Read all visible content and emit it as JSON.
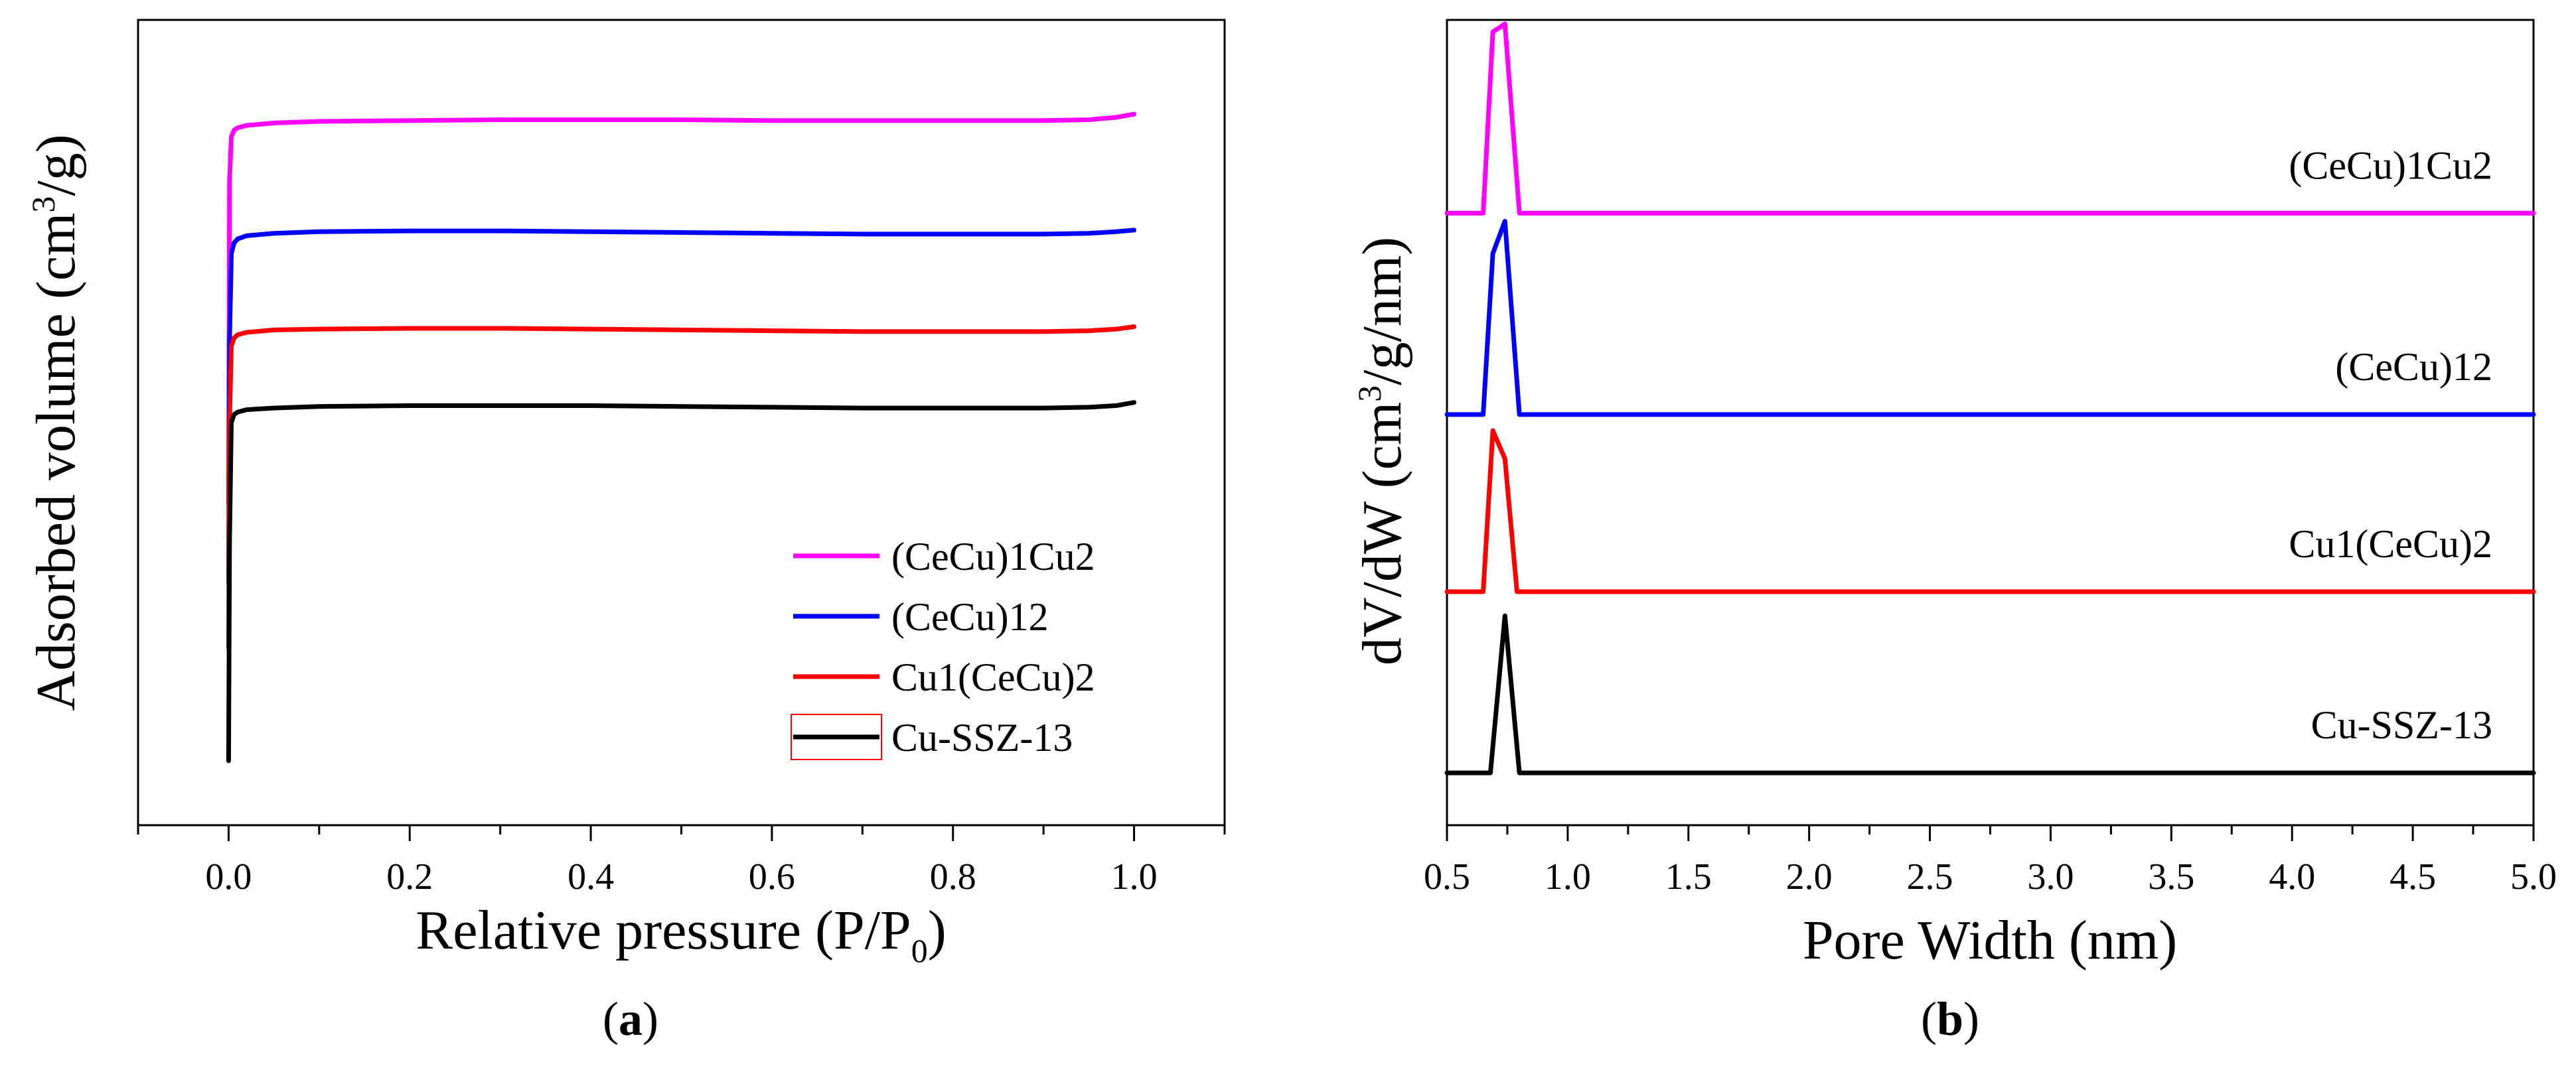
{
  "chart_data": [
    {
      "type": "line",
      "panel": "a",
      "xlabel_main": "Relative pressure (P/P",
      "xlabel_sub": "0",
      "xlabel_close": ")",
      "ylabel_main": "Adsorbed volume (cm",
      "ylabel_sup": "3",
      "ylabel_close": "/g)",
      "xlim": [
        -0.1,
        1.1
      ],
      "ylim": [
        0,
        100
      ],
      "xticks": [
        "0.0",
        "0.2",
        "0.4",
        "0.6",
        "0.8",
        "1.0"
      ],
      "xtick_values": [
        0.0,
        0.2,
        0.4,
        0.6,
        0.8,
        1.0
      ],
      "y_ticks_shown": false,
      "legend": {
        "placement": "bottom-right"
      },
      "series": [
        {
          "name": "(CeCu)1Cu2",
          "color": "#ff00ff",
          "x": [
            0,
            0.001,
            0.003,
            0.006,
            0.01,
            0.02,
            0.05,
            0.1,
            0.2,
            0.3,
            0.4,
            0.5,
            0.6,
            0.7,
            0.8,
            0.9,
            0.95,
            0.98,
            1.0
          ],
          "y": [
            40,
            80,
            85.5,
            86.3,
            86.6,
            86.9,
            87.2,
            87.4,
            87.5,
            87.6,
            87.6,
            87.6,
            87.5,
            87.5,
            87.5,
            87.5,
            87.6,
            87.9,
            88.3
          ]
        },
        {
          "name": "(CeCu)12",
          "color": "#0000ff",
          "x": [
            0,
            0.001,
            0.003,
            0.006,
            0.01,
            0.02,
            0.05,
            0.1,
            0.2,
            0.3,
            0.4,
            0.5,
            0.6,
            0.7,
            0.8,
            0.9,
            0.95,
            0.98,
            1.0
          ],
          "y": [
            30,
            60,
            71,
            72.3,
            72.8,
            73.2,
            73.5,
            73.7,
            73.8,
            73.8,
            73.7,
            73.6,
            73.5,
            73.4,
            73.4,
            73.4,
            73.5,
            73.7,
            73.9
          ]
        },
        {
          "name": "Cu1(CeCu)2",
          "color": "#ff0000",
          "x": [
            0,
            0.001,
            0.003,
            0.006,
            0.01,
            0.02,
            0.05,
            0.1,
            0.2,
            0.3,
            0.4,
            0.5,
            0.6,
            0.7,
            0.8,
            0.9,
            0.95,
            0.98,
            1.0
          ],
          "y": [
            22,
            50,
            59.5,
            60.5,
            60.9,
            61.2,
            61.5,
            61.6,
            61.7,
            61.7,
            61.6,
            61.5,
            61.4,
            61.3,
            61.3,
            61.3,
            61.4,
            61.6,
            61.9
          ]
        },
        {
          "name": "Cu-SSZ-13",
          "color": "#000000",
          "x": [
            0,
            0.001,
            0.003,
            0.006,
            0.01,
            0.02,
            0.05,
            0.1,
            0.2,
            0.3,
            0.4,
            0.5,
            0.6,
            0.7,
            0.8,
            0.9,
            0.95,
            0.98,
            1.0
          ],
          "y": [
            8,
            35,
            50,
            51,
            51.3,
            51.6,
            51.8,
            52,
            52.1,
            52.1,
            52.1,
            52,
            51.9,
            51.8,
            51.8,
            51.8,
            51.9,
            52.1,
            52.5
          ]
        }
      ]
    },
    {
      "type": "line",
      "panel": "b",
      "xlabel": "Pore Width (nm)",
      "ylabel_main": "dV/dW (cm",
      "ylabel_sup": "3",
      "ylabel_close": "/g/nm)",
      "xlim": [
        0.5,
        5.0
      ],
      "ylim": [
        0,
        100
      ],
      "xticks": [
        "0.5",
        "1.0",
        "1.5",
        "2.0",
        "2.5",
        "3.0",
        "3.5",
        "4.0",
        "4.5",
        "5.0"
      ],
      "xtick_values": [
        0.5,
        1.0,
        1.5,
        2.0,
        2.5,
        3.0,
        3.5,
        4.0,
        4.5,
        5.0
      ],
      "y_ticks_shown": false,
      "series": [
        {
          "name": "(CeCu)1Cu2",
          "color": "#ff00ff",
          "x": [
            0.5,
            0.65,
            0.69,
            0.74,
            0.8,
            5.0
          ],
          "y": [
            76,
            76,
            98.5,
            99.5,
            76,
            76
          ]
        },
        {
          "name": "(CeCu)12",
          "color": "#0000ff",
          "x": [
            0.5,
            0.65,
            0.69,
            0.74,
            0.8,
            5.0
          ],
          "y": [
            51,
            51,
            71,
            75,
            51,
            51
          ]
        },
        {
          "name": "Cu1(CeCu)2",
          "color": "#ff0000",
          "x": [
            0.5,
            0.65,
            0.69,
            0.74,
            0.79,
            5.0
          ],
          "y": [
            29,
            29,
            49,
            45.5,
            29,
            29
          ]
        },
        {
          "name": "Cu-SSZ-13",
          "color": "#000000",
          "x": [
            0.5,
            0.68,
            0.74,
            0.8,
            5.0
          ],
          "y": [
            6.5,
            6.5,
            26,
            6.5,
            6.5
          ]
        }
      ]
    }
  ],
  "panel_labels": {
    "a": "a",
    "b": "b"
  },
  "legend_swatch_outline_color": "#ff0000"
}
